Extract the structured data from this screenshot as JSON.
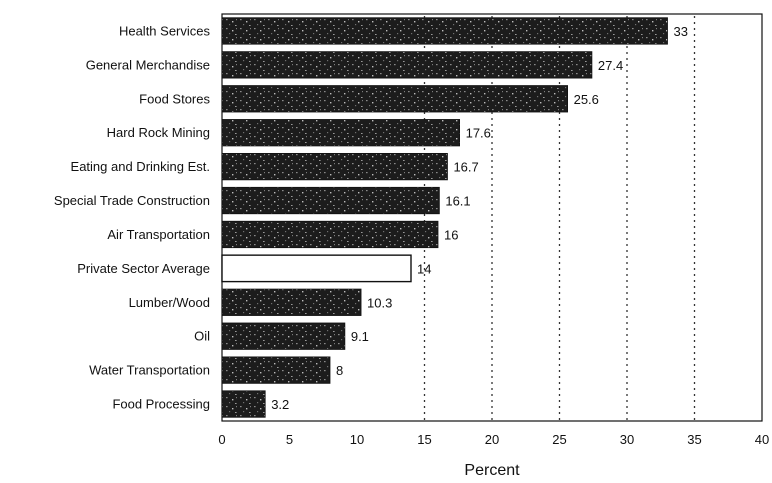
{
  "chart_data": {
    "type": "bar",
    "orientation": "horizontal",
    "categories": [
      "Health Services",
      "General Merchandise",
      "Food Stores",
      "Hard Rock Mining",
      "Eating and Drinking Est.",
      "Special Trade Construction",
      "Air Transportation",
      "Private Sector Average",
      "Lumber/Wood",
      "Oil",
      "Water Transportation",
      "Food Processing"
    ],
    "values": [
      33,
      27.4,
      25.6,
      17.6,
      16.7,
      16.1,
      16,
      14,
      10.3,
      9.1,
      8,
      3.2
    ],
    "value_labels": [
      "33",
      "27.4",
      "25.6",
      "17.6",
      "16.7",
      "16.1",
      "16",
      "14",
      "10.3",
      "9.1",
      "8",
      "3.2"
    ],
    "highlight_category": "Private Sector Average",
    "xlabel": "Percent",
    "xlim": [
      0,
      40
    ],
    "xticks": [
      "0",
      "5",
      "10",
      "15",
      "20",
      "25",
      "30",
      "35",
      "40"
    ],
    "reference_lines": [
      15,
      20,
      25,
      30,
      35
    ],
    "grid": false,
    "colors": {
      "bar": "#1c1c1c",
      "highlight_fill": "#ffffff",
      "outline": "#111111"
    }
  }
}
